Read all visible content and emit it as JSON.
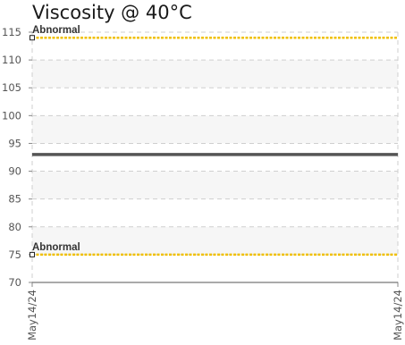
{
  "chart_data": {
    "type": "line",
    "title": "Viscosity @ 40°C",
    "xlabel": "",
    "ylabel": "",
    "x": [
      "May14/24",
      "May14/24"
    ],
    "ylim": [
      70,
      115
    ],
    "yticks": [
      70,
      75,
      80,
      85,
      90,
      95,
      100,
      105,
      110,
      115
    ],
    "grid": true,
    "series": [
      {
        "values": [
          93,
          93
        ],
        "color": "#555555"
      }
    ],
    "thresholds": [
      {
        "label": "Abnormal",
        "value": 114,
        "color": "#f0c000"
      },
      {
        "label": "Abnormal",
        "value": 75,
        "color": "#f0c000"
      }
    ]
  }
}
